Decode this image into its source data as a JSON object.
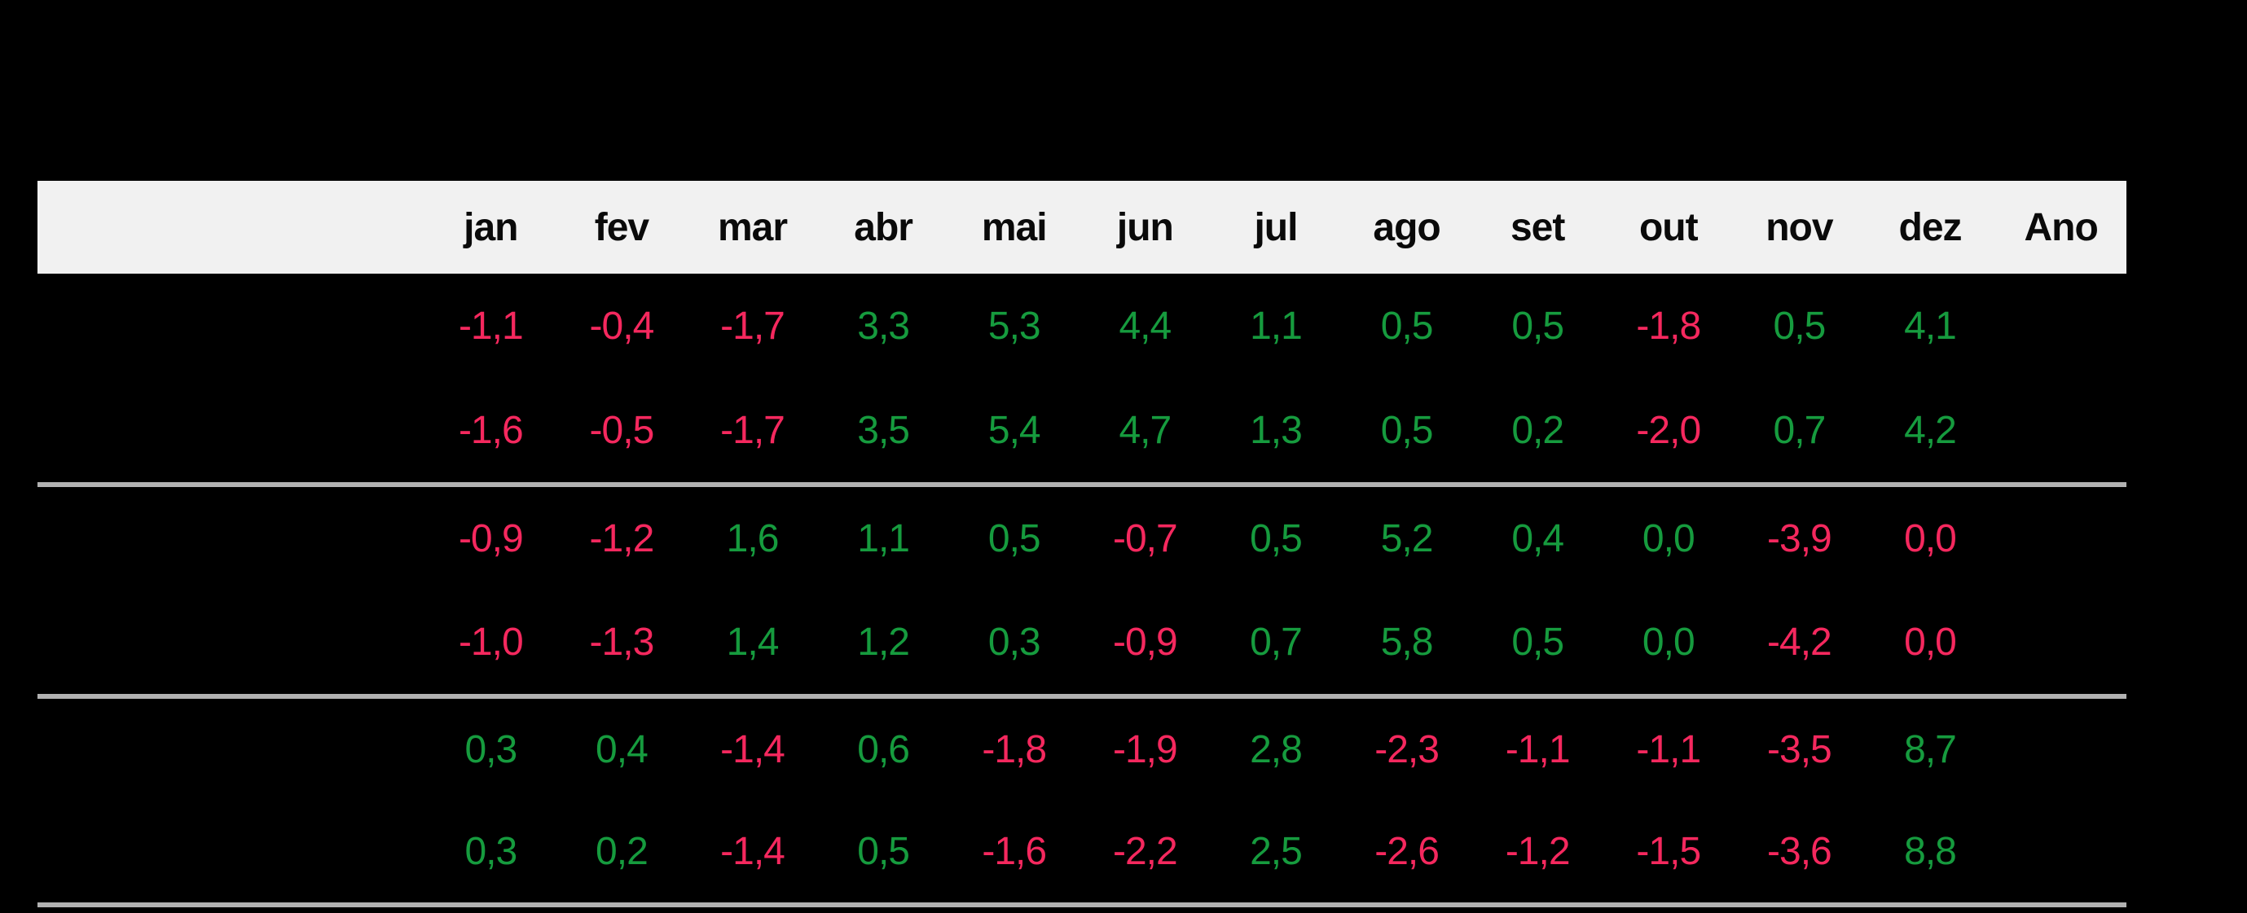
{
  "colors": {
    "background": "#000000",
    "header_background": "#f1f1f1",
    "header_text": "#0a0a0a",
    "positive_value": "#169b3e",
    "negative_value": "#f5285e",
    "divider": "#b2b2b2"
  },
  "chart_data": {
    "type": "table",
    "row_label_header": "",
    "columns": [
      "jan",
      "fev",
      "mar",
      "abr",
      "mai",
      "jun",
      "jul",
      "ago",
      "set",
      "out",
      "nov",
      "dez",
      "Ano"
    ],
    "groups": [
      {
        "rows": [
          {
            "label": "",
            "cells": [
              {
                "t": "-1,1",
                "s": "neg"
              },
              {
                "t": "-0,4",
                "s": "neg"
              },
              {
                "t": "-1,7",
                "s": "neg"
              },
              {
                "t": "3,3",
                "s": "pos"
              },
              {
                "t": "5,3",
                "s": "pos"
              },
              {
                "t": "4,4",
                "s": "pos"
              },
              {
                "t": "1,1",
                "s": "pos"
              },
              {
                "t": "0,5",
                "s": "pos"
              },
              {
                "t": "0,5",
                "s": "pos"
              },
              {
                "t": "-1,8",
                "s": "neg"
              },
              {
                "t": "0,5",
                "s": "pos"
              },
              {
                "t": "4,1",
                "s": "pos"
              },
              {
                "t": "",
                "s": "none"
              }
            ]
          },
          {
            "label": "",
            "cells": [
              {
                "t": "-1,6",
                "s": "neg"
              },
              {
                "t": "-0,5",
                "s": "neg"
              },
              {
                "t": "-1,7",
                "s": "neg"
              },
              {
                "t": "3,5",
                "s": "pos"
              },
              {
                "t": "5,4",
                "s": "pos"
              },
              {
                "t": "4,7",
                "s": "pos"
              },
              {
                "t": "1,3",
                "s": "pos"
              },
              {
                "t": "0,5",
                "s": "pos"
              },
              {
                "t": "0,2",
                "s": "pos"
              },
              {
                "t": "-2,0",
                "s": "neg"
              },
              {
                "t": "0,7",
                "s": "pos"
              },
              {
                "t": "4,2",
                "s": "pos"
              },
              {
                "t": "",
                "s": "none"
              }
            ]
          }
        ]
      },
      {
        "rows": [
          {
            "label": "",
            "cells": [
              {
                "t": "-0,9",
                "s": "neg"
              },
              {
                "t": "-1,2",
                "s": "neg"
              },
              {
                "t": "1,6",
                "s": "pos"
              },
              {
                "t": "1,1",
                "s": "pos"
              },
              {
                "t": "0,5",
                "s": "pos"
              },
              {
                "t": "-0,7",
                "s": "neg"
              },
              {
                "t": "0,5",
                "s": "pos"
              },
              {
                "t": "5,2",
                "s": "pos"
              },
              {
                "t": "0,4",
                "s": "pos"
              },
              {
                "t": "0,0",
                "s": "pos"
              },
              {
                "t": "-3,9",
                "s": "neg"
              },
              {
                "t": "0,0",
                "s": "neg"
              },
              {
                "t": "",
                "s": "none"
              }
            ]
          },
          {
            "label": "",
            "cells": [
              {
                "t": "-1,0",
                "s": "neg"
              },
              {
                "t": "-1,3",
                "s": "neg"
              },
              {
                "t": "1,4",
                "s": "pos"
              },
              {
                "t": "1,2",
                "s": "pos"
              },
              {
                "t": "0,3",
                "s": "pos"
              },
              {
                "t": "-0,9",
                "s": "neg"
              },
              {
                "t": "0,7",
                "s": "pos"
              },
              {
                "t": "5,8",
                "s": "pos"
              },
              {
                "t": "0,5",
                "s": "pos"
              },
              {
                "t": "0,0",
                "s": "pos"
              },
              {
                "t": "-4,2",
                "s": "neg"
              },
              {
                "t": "0,0",
                "s": "neg"
              },
              {
                "t": "",
                "s": "none"
              }
            ]
          }
        ]
      },
      {
        "rows": [
          {
            "label": "",
            "cells": [
              {
                "t": "0,3",
                "s": "pos"
              },
              {
                "t": "0,4",
                "s": "pos"
              },
              {
                "t": "-1,4",
                "s": "neg"
              },
              {
                "t": "0,6",
                "s": "pos"
              },
              {
                "t": "-1,8",
                "s": "neg"
              },
              {
                "t": "-1,9",
                "s": "neg"
              },
              {
                "t": "2,8",
                "s": "pos"
              },
              {
                "t": "-2,3",
                "s": "neg"
              },
              {
                "t": "-1,1",
                "s": "neg"
              },
              {
                "t": "-1,1",
                "s": "neg"
              },
              {
                "t": "-3,5",
                "s": "neg"
              },
              {
                "t": "8,7",
                "s": "pos"
              },
              {
                "t": "",
                "s": "none"
              }
            ]
          },
          {
            "label": "",
            "cells": [
              {
                "t": "0,3",
                "s": "pos"
              },
              {
                "t": "0,2",
                "s": "pos"
              },
              {
                "t": "-1,4",
                "s": "neg"
              },
              {
                "t": "0,5",
                "s": "pos"
              },
              {
                "t": "-1,6",
                "s": "neg"
              },
              {
                "t": "-2,2",
                "s": "neg"
              },
              {
                "t": "2,5",
                "s": "pos"
              },
              {
                "t": "-2,6",
                "s": "neg"
              },
              {
                "t": "-1,2",
                "s": "neg"
              },
              {
                "t": "-1,5",
                "s": "neg"
              },
              {
                "t": "-3,6",
                "s": "neg"
              },
              {
                "t": "8,8",
                "s": "pos"
              },
              {
                "t": "",
                "s": "none"
              }
            ]
          }
        ]
      }
    ]
  }
}
